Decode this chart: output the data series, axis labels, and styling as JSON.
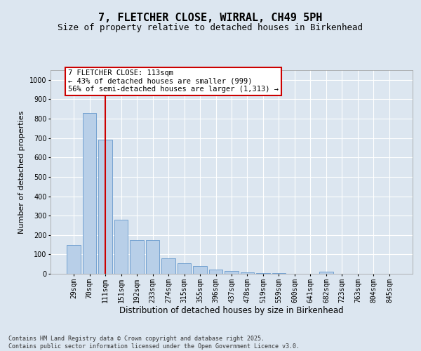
{
  "title": "7, FLETCHER CLOSE, WIRRAL, CH49 5PH",
  "subtitle": "Size of property relative to detached houses in Birkenhead",
  "xlabel": "Distribution of detached houses by size in Birkenhead",
  "ylabel": "Number of detached properties",
  "categories": [
    "29sqm",
    "70sqm",
    "111sqm",
    "151sqm",
    "192sqm",
    "233sqm",
    "274sqm",
    "315sqm",
    "355sqm",
    "396sqm",
    "437sqm",
    "478sqm",
    "519sqm",
    "559sqm",
    "600sqm",
    "641sqm",
    "682sqm",
    "723sqm",
    "763sqm",
    "804sqm",
    "845sqm"
  ],
  "values": [
    148,
    830,
    690,
    280,
    175,
    175,
    80,
    55,
    40,
    20,
    15,
    8,
    5,
    5,
    0,
    0,
    10,
    0,
    0,
    0,
    0
  ],
  "bar_color": "#b8cfe8",
  "bar_edge_color": "#6699cc",
  "red_line_index": 2,
  "red_line_color": "#cc0000",
  "annotation_text": "7 FLETCHER CLOSE: 113sqm\n← 43% of detached houses are smaller (999)\n56% of semi-detached houses are larger (1,313) →",
  "annotation_box_color": "#ffffff",
  "annotation_box_edge_color": "#cc0000",
  "ylim": [
    0,
    1050
  ],
  "yticks": [
    0,
    100,
    200,
    300,
    400,
    500,
    600,
    700,
    800,
    900,
    1000
  ],
  "background_color": "#dce6f0",
  "grid_color": "#ffffff",
  "footnote": "Contains HM Land Registry data © Crown copyright and database right 2025.\nContains public sector information licensed under the Open Government Licence v3.0.",
  "title_fontsize": 11,
  "subtitle_fontsize": 9,
  "xlabel_fontsize": 8.5,
  "ylabel_fontsize": 8,
  "tick_fontsize": 7,
  "annotation_fontsize": 7.5,
  "footnote_fontsize": 6
}
